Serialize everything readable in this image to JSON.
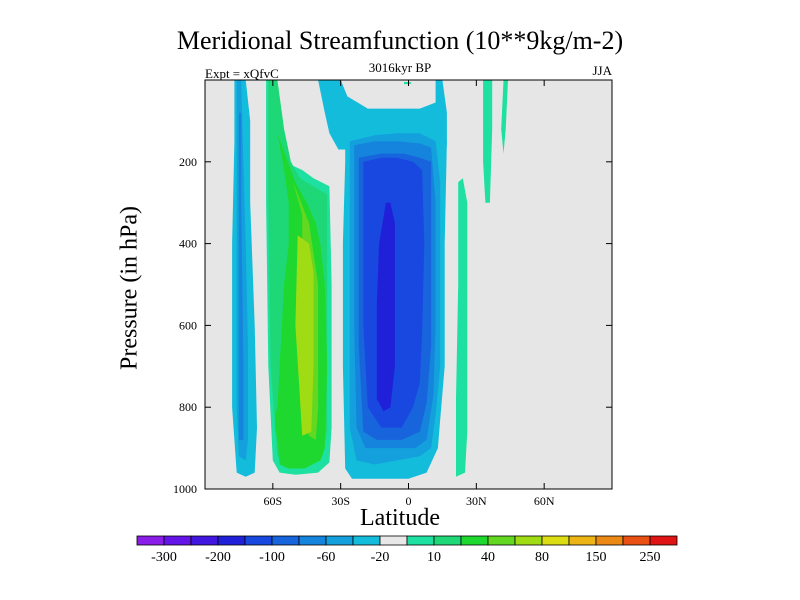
{
  "chart_data": {
    "type": "contour",
    "title": "Meridional Streamfunction (10**9kg/m-2)",
    "left_label": "Expt = xQfvC",
    "center_label": "3016kyr BP",
    "right_label": "JJA",
    "xlabel": "Latitude",
    "ylabel": "Pressure (in hPa)",
    "xlim": [
      -90,
      90
    ],
    "ylim": [
      1000,
      0
    ],
    "x_ticks": [
      {
        "value": -60,
        "label": "60S"
      },
      {
        "value": -30,
        "label": "30S"
      },
      {
        "value": 0,
        "label": "0"
      },
      {
        "value": 30,
        "label": "30N"
      },
      {
        "value": 60,
        "label": "60N"
      }
    ],
    "y_ticks": [
      {
        "value": 200,
        "label": "200"
      },
      {
        "value": 400,
        "label": "400"
      },
      {
        "value": 600,
        "label": "600"
      },
      {
        "value": 800,
        "label": "800"
      },
      {
        "value": 1000,
        "label": "1000"
      }
    ],
    "background_color": "#e6e6e6",
    "colorbar": {
      "levels": [
        -300,
        -250,
        -200,
        -150,
        -100,
        -80,
        -60,
        -40,
        -20,
        -10,
        10,
        20,
        40,
        60,
        80,
        100,
        150,
        200,
        250,
        300
      ],
      "labels": [
        "-300",
        "-200",
        "-100",
        "-60",
        "-20",
        "10",
        "40",
        "80",
        "150",
        "250"
      ],
      "colors": [
        "#8a1ee8",
        "#6414e6",
        "#4016e0",
        "#2020d8",
        "#1848e0",
        "#1864dc",
        "#1484dc",
        "#14a0dc",
        "#14bcdc",
        "#e8e8e8",
        "#1ee0a0",
        "#1ed878",
        "#1ed830",
        "#64d820",
        "#a0dc14",
        "#dcdc14",
        "#ecb414",
        "#ec8814",
        "#e85014",
        "#e01414"
      ]
    },
    "regions": [
      {
        "name": "sh-polar-outer-negative",
        "level_index": 8,
        "points": [
          [
            -77,
            0
          ],
          [
            -72,
            0
          ],
          [
            -70,
            100
          ],
          [
            -70,
            300
          ],
          [
            -68,
            600
          ],
          [
            -67,
            850
          ],
          [
            -68,
            960
          ],
          [
            -72,
            970
          ],
          [
            -76,
            960
          ],
          [
            -78,
            800
          ],
          [
            -78,
            400
          ],
          [
            -77,
            150
          ]
        ]
      },
      {
        "name": "sh-polar-inner-negative",
        "level_index": 7,
        "points": [
          [
            -76,
            0
          ],
          [
            -74,
            0
          ],
          [
            -73,
            200
          ],
          [
            -72,
            400
          ],
          [
            -71,
            650
          ],
          [
            -71,
            880
          ],
          [
            -72,
            930
          ],
          [
            -75,
            920
          ],
          [
            -76,
            800
          ],
          [
            -76,
            300
          ]
        ]
      },
      {
        "name": "sh-polar-core-negative",
        "level_index": 6,
        "points": [
          [
            -75,
            80
          ],
          [
            -74,
            80
          ],
          [
            -74,
            300
          ],
          [
            -73,
            700
          ],
          [
            -73,
            880
          ],
          [
            -75,
            880
          ],
          [
            -75,
            500
          ]
        ]
      },
      {
        "name": "sh-ferrel-outer-positive",
        "level_index": 10,
        "points": [
          [
            -63,
            0
          ],
          [
            -60,
            0
          ],
          [
            -58,
            130
          ],
          [
            -55,
            200
          ],
          [
            -47,
            220
          ],
          [
            -42,
            240
          ],
          [
            -35,
            260
          ],
          [
            -34,
            500
          ],
          [
            -34,
            850
          ],
          [
            -35,
            935
          ],
          [
            -40,
            960
          ],
          [
            -50,
            965
          ],
          [
            -57,
            960
          ],
          [
            -60,
            930
          ],
          [
            -62,
            700
          ],
          [
            -63,
            300
          ]
        ]
      },
      {
        "name": "sh-ferrel-positive",
        "level_index": 11,
        "points": [
          [
            -62,
            0
          ],
          [
            -58,
            0
          ],
          [
            -55,
            120
          ],
          [
            -52,
            200
          ],
          [
            -48,
            240
          ],
          [
            -42,
            260
          ],
          [
            -36,
            280
          ],
          [
            -36,
            600
          ],
          [
            -36,
            860
          ],
          [
            -38,
            920
          ],
          [
            -45,
            945
          ],
          [
            -53,
            945
          ],
          [
            -58,
            920
          ],
          [
            -61,
            700
          ],
          [
            -62,
            300
          ]
        ]
      },
      {
        "name": "sh-ferrel-inner-positive",
        "level_index": 12,
        "points": [
          [
            -60,
            100
          ],
          [
            -58,
            130
          ],
          [
            -55,
            220
          ],
          [
            -53,
            300
          ],
          [
            -53,
            400
          ],
          [
            -55,
            500
          ],
          [
            -56,
            600
          ],
          [
            -57,
            700
          ],
          [
            -58,
            800
          ],
          [
            -59,
            820
          ],
          [
            -59,
            850
          ],
          [
            -58,
            880
          ],
          [
            -57,
            940
          ],
          [
            -53,
            950
          ],
          [
            -46,
            950
          ],
          [
            -39,
            930
          ],
          [
            -37,
            900
          ],
          [
            -36,
            700
          ],
          [
            -37,
            500
          ],
          [
            -39,
            400
          ],
          [
            -41,
            350
          ],
          [
            -45,
            300
          ],
          [
            -50,
            250
          ]
        ]
      },
      {
        "name": "sh-ferrel-core-positive",
        "level_index": 13,
        "points": [
          [
            -51,
            250
          ],
          [
            -47,
            330
          ],
          [
            -47,
            600
          ],
          [
            -47,
            800
          ],
          [
            -44,
            870
          ],
          [
            -41,
            880
          ],
          [
            -40,
            800
          ],
          [
            -40,
            500
          ],
          [
            -44,
            350
          ]
        ]
      },
      {
        "name": "sh-ferrel-peak-positive",
        "level_index": 14,
        "points": [
          [
            -49,
            380
          ],
          [
            -50,
            600
          ],
          [
            -48,
            780
          ],
          [
            -47,
            870
          ],
          [
            -43,
            860
          ],
          [
            -42,
            700
          ],
          [
            -42,
            470
          ],
          [
            -44,
            400
          ]
        ]
      },
      {
        "name": "strato-band-negative",
        "level_index": 8,
        "points": [
          [
            -40,
            0
          ],
          [
            -30,
            0
          ],
          [
            -27,
            40
          ],
          [
            -18,
            70
          ],
          [
            -4,
            70
          ],
          [
            5,
            70
          ],
          [
            12,
            55
          ],
          [
            12,
            0
          ],
          [
            15,
            0
          ],
          [
            17,
            80
          ],
          [
            17,
            160
          ],
          [
            12,
            180
          ],
          [
            0,
            170
          ],
          [
            -10,
            180
          ],
          [
            -26,
            170
          ],
          [
            -31,
            170
          ],
          [
            -35,
            130
          ],
          [
            -37,
            80
          ]
        ]
      },
      {
        "name": "hadley-outer-negative",
        "level_index": 8,
        "points": [
          [
            -28,
            130
          ],
          [
            -18,
            120
          ],
          [
            -7,
            110
          ],
          [
            3,
            110
          ],
          [
            12,
            120
          ],
          [
            17,
            150
          ],
          [
            16,
            400
          ],
          [
            16,
            550
          ],
          [
            16,
            700
          ],
          [
            14,
            830
          ],
          [
            13,
            900
          ],
          [
            8,
            960
          ],
          [
            0,
            975
          ],
          [
            -10,
            975
          ],
          [
            -25,
            975
          ],
          [
            -28,
            950
          ],
          [
            -29,
            700
          ],
          [
            -29,
            400
          ],
          [
            -28,
            200
          ]
        ]
      },
      {
        "name": "hadley-negative",
        "level_index": 7,
        "points": [
          [
            -26,
            150
          ],
          [
            -15,
            135
          ],
          [
            -5,
            130
          ],
          [
            5,
            130
          ],
          [
            12,
            150
          ],
          [
            14,
            250
          ],
          [
            14,
            500
          ],
          [
            14,
            700
          ],
          [
            12,
            820
          ],
          [
            10,
            900
          ],
          [
            5,
            920
          ],
          [
            -5,
            930
          ],
          [
            -15,
            940
          ],
          [
            -23,
            930
          ],
          [
            -26,
            850
          ],
          [
            -26,
            400
          ]
        ]
      },
      {
        "name": "hadley-inner-negative",
        "level_index": 6,
        "points": [
          [
            -24,
            160
          ],
          [
            -15,
            150
          ],
          [
            -5,
            150
          ],
          [
            5,
            155
          ],
          [
            10,
            165
          ],
          [
            12,
            300
          ],
          [
            12,
            600
          ],
          [
            11,
            770
          ],
          [
            8,
            880
          ],
          [
            3,
            900
          ],
          [
            -7,
            900
          ],
          [
            -19,
            900
          ],
          [
            -23,
            850
          ],
          [
            -24,
            600
          ],
          [
            -24,
            300
          ]
        ]
      },
      {
        "name": "hadley-mid-negative",
        "level_index": 5,
        "points": [
          [
            -22,
            190
          ],
          [
            -12,
            180
          ],
          [
            -2,
            180
          ],
          [
            5,
            190
          ],
          [
            10,
            200
          ],
          [
            10,
            400
          ],
          [
            10,
            650
          ],
          [
            8,
            790
          ],
          [
            5,
            860
          ],
          [
            -3,
            880
          ],
          [
            -14,
            880
          ],
          [
            -20,
            860
          ],
          [
            -22,
            650
          ],
          [
            -22,
            350
          ]
        ]
      },
      {
        "name": "hadley-core-negative",
        "level_index": 4,
        "points": [
          [
            -20,
            200
          ],
          [
            -12,
            190
          ],
          [
            -5,
            190
          ],
          [
            2,
            200
          ],
          [
            6,
            220
          ],
          [
            7,
            400
          ],
          [
            6,
            620
          ],
          [
            5,
            740
          ],
          [
            2,
            800
          ],
          [
            -3,
            850
          ],
          [
            -12,
            850
          ],
          [
            -18,
            800
          ],
          [
            -20,
            600
          ],
          [
            -20,
            350
          ]
        ]
      },
      {
        "name": "hadley-peak-negative",
        "level_index": 3,
        "points": [
          [
            -10,
            300
          ],
          [
            -8,
            300
          ],
          [
            -6,
            350
          ],
          [
            -6,
            500
          ],
          [
            -6,
            700
          ],
          [
            -8,
            800
          ],
          [
            -11,
            810
          ],
          [
            -14,
            780
          ],
          [
            -14,
            550
          ],
          [
            -13,
            400
          ]
        ]
      },
      {
        "name": "nh-subtropic-positive",
        "level_index": 10,
        "points": [
          [
            22,
            250
          ],
          [
            24,
            240
          ],
          [
            26,
            300
          ],
          [
            26,
            600
          ],
          [
            26,
            860
          ],
          [
            25,
            960
          ],
          [
            21,
            970
          ],
          [
            21,
            780
          ],
          [
            22,
            500
          ]
        ]
      },
      {
        "name": "nh-strato-positive-a",
        "level_index": 10,
        "points": [
          [
            33,
            0
          ],
          [
            37,
            0
          ],
          [
            37,
            120
          ],
          [
            36,
            300
          ],
          [
            34,
            300
          ],
          [
            33,
            200
          ]
        ]
      },
      {
        "name": "nh-strato-positive-b",
        "level_index": 10,
        "points": [
          [
            42,
            0
          ],
          [
            44,
            0
          ],
          [
            43,
            120
          ],
          [
            42,
            180
          ],
          [
            41,
            120
          ]
        ]
      },
      {
        "name": "equator-strato-dot",
        "level_index": 10,
        "points": [
          [
            -2,
            5
          ],
          [
            1,
            5
          ],
          [
            1,
            10
          ],
          [
            -2,
            10
          ]
        ]
      }
    ]
  }
}
